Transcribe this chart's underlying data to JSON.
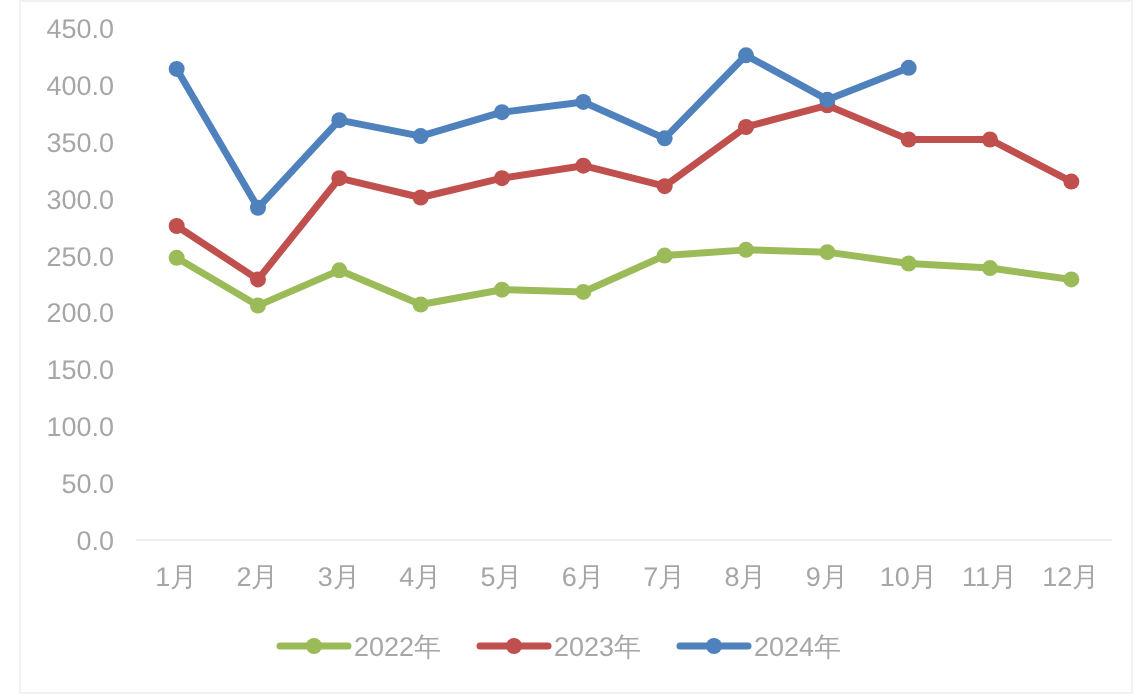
{
  "chart_data": {
    "type": "line",
    "categories": [
      "1月",
      "2月",
      "3月",
      "4月",
      "5月",
      "6月",
      "7月",
      "8月",
      "9月",
      "10月",
      "11月",
      "12月"
    ],
    "series": [
      {
        "name": "2022年",
        "color": "#9bbb59",
        "values": [
          248,
          206,
          237,
          207,
          220,
          218,
          250,
          255,
          253,
          243,
          239,
          229
        ]
      },
      {
        "name": "2023年",
        "color": "#c0504d",
        "values": [
          276,
          229,
          318,
          301,
          318,
          329,
          311,
          363,
          382,
          352,
          352,
          315
        ]
      },
      {
        "name": "2024年",
        "color": "#4f81bd",
        "values": [
          414,
          292,
          369,
          355,
          376,
          385,
          353,
          426,
          387,
          415,
          null,
          null
        ]
      }
    ],
    "ylim": [
      0,
      450
    ],
    "yticks": [
      {
        "value": 0,
        "label": "0.0"
      },
      {
        "value": 50,
        "label": "50.0"
      },
      {
        "value": 100,
        "label": "100.0"
      },
      {
        "value": 150,
        "label": "150.0"
      },
      {
        "value": 200,
        "label": "200.0"
      },
      {
        "value": 250,
        "label": "250.0"
      },
      {
        "value": 300,
        "label": "300.0"
      },
      {
        "value": 350,
        "label": "350.0"
      },
      {
        "value": 400,
        "label": "400.0"
      },
      {
        "value": 450,
        "label": "450.0"
      }
    ],
    "grid": false,
    "legend": "bottom",
    "marker": "circle"
  }
}
